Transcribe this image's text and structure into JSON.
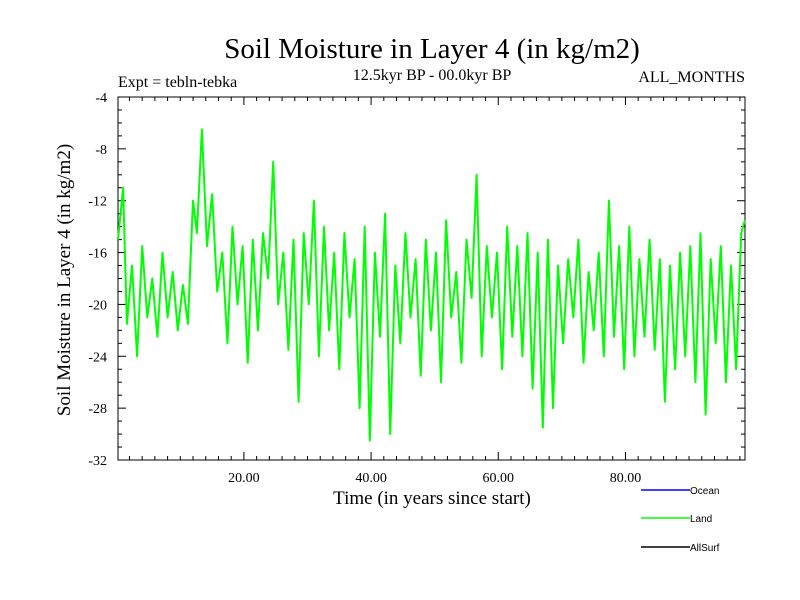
{
  "chart_data": {
    "type": "line",
    "title": "Soil Moisture in Layer 4 (in kg/m2)",
    "subtitle": "12.5kyr BP - 00.0kyr BP",
    "expt_label": "Expt = tebln-tebka",
    "months_label": "ALL_MONTHS",
    "xlabel": "Time (in years since start)",
    "ylabel": "Soil Moisture in Layer 4 (in kg/m2)",
    "xlim": [
      0.2,
      98.8
    ],
    "ylim": [
      -32,
      -4
    ],
    "x_ticks": [
      20,
      40,
      60,
      80
    ],
    "x_tick_labels": [
      "20.00",
      "40.00",
      "60.00",
      "80.00"
    ],
    "y_ticks": [
      -4,
      -8,
      -12,
      -16,
      -20,
      -24,
      -28,
      -32
    ],
    "y_tick_labels": [
      "-4",
      "-8",
      "-12",
      "-16",
      "-20",
      "-24",
      "-28",
      "-32"
    ],
    "series": [
      {
        "name": "Ocean",
        "color": "#0000ff",
        "x": [],
        "values": []
      },
      {
        "name": "Land",
        "color": "#00ff00",
        "x": [
          0.2,
          1.0,
          1.6,
          2.4,
          3.2,
          4.0,
          4.8,
          5.6,
          6.4,
          7.2,
          8.0,
          8.8,
          9.6,
          10.4,
          11.2,
          12.0,
          12.6,
          13.4,
          14.2,
          15.0,
          15.8,
          16.6,
          17.4,
          18.2,
          19.0,
          19.8,
          20.6,
          21.4,
          22.2,
          23.0,
          23.8,
          24.6,
          25.4,
          26.2,
          27.0,
          27.8,
          28.6,
          29.4,
          30.2,
          31.0,
          31.8,
          32.6,
          33.4,
          34.2,
          35.0,
          35.8,
          36.6,
          37.4,
          38.2,
          39.0,
          39.8,
          40.6,
          41.4,
          42.2,
          43.0,
          43.8,
          44.6,
          45.4,
          46.2,
          47.0,
          47.8,
          48.6,
          49.4,
          50.2,
          51.0,
          51.8,
          52.6,
          53.4,
          54.2,
          55.0,
          55.8,
          56.6,
          57.4,
          58.2,
          59.0,
          59.8,
          60.6,
          61.4,
          62.2,
          63.0,
          63.8,
          64.6,
          65.4,
          66.2,
          67.0,
          67.8,
          68.6,
          69.4,
          70.2,
          71.0,
          71.8,
          72.6,
          73.4,
          74.2,
          75.0,
          75.8,
          76.6,
          77.4,
          78.2,
          79.0,
          79.8,
          80.6,
          81.4,
          82.2,
          83.0,
          83.8,
          84.6,
          85.4,
          86.2,
          87.0,
          87.8,
          88.6,
          89.4,
          90.2,
          91.0,
          91.8,
          92.6,
          93.4,
          94.2,
          95.0,
          95.8,
          96.6,
          97.4,
          98.2,
          98.8
        ],
        "values": [
          -15.0,
          -11.0,
          -21.5,
          -17.0,
          -24.0,
          -15.5,
          -21.0,
          -18.0,
          -22.5,
          -16.0,
          -21.0,
          -17.5,
          -22.0,
          -18.5,
          -21.5,
          -12.0,
          -14.5,
          -6.5,
          -15.5,
          -11.5,
          -19.0,
          -16.0,
          -23.0,
          -14.0,
          -20.0,
          -15.5,
          -24.5,
          -15.0,
          -22.0,
          -14.5,
          -18.0,
          -9.0,
          -20.0,
          -16.0,
          -23.5,
          -15.0,
          -27.5,
          -14.5,
          -20.0,
          -12.0,
          -24.0,
          -14.0,
          -22.0,
          -16.0,
          -25.0,
          -14.5,
          -21.0,
          -16.5,
          -28.0,
          -14.0,
          -30.5,
          -16.0,
          -22.5,
          -13.0,
          -30.0,
          -17.0,
          -23.0,
          -14.5,
          -21.0,
          -16.5,
          -25.5,
          -15.0,
          -22.0,
          -16.0,
          -26.0,
          -13.5,
          -21.0,
          -17.5,
          -24.5,
          -15.0,
          -19.5,
          -10.0,
          -24.0,
          -15.5,
          -21.0,
          -16.0,
          -25.0,
          -14.0,
          -22.5,
          -15.5,
          -24.0,
          -14.5,
          -26.5,
          -16.0,
          -29.5,
          -15.0,
          -28.0,
          -17.0,
          -23.0,
          -16.5,
          -21.0,
          -15.0,
          -24.5,
          -17.5,
          -22.0,
          -16.0,
          -24.0,
          -12.0,
          -22.5,
          -15.5,
          -25.0,
          -14.0,
          -24.0,
          -16.5,
          -22.5,
          -15.0,
          -23.5,
          -16.5,
          -27.5,
          -17.0,
          -25.0,
          -16.0,
          -24.0,
          -15.5,
          -26.0,
          -14.5,
          -28.5,
          -16.5,
          -23.0,
          -15.5,
          -26.0,
          -17.0,
          -25.0,
          -14.5,
          -13.5
        ]
      },
      {
        "name": "AllSurf",
        "color": "#000000",
        "x": [],
        "values": []
      }
    ]
  }
}
